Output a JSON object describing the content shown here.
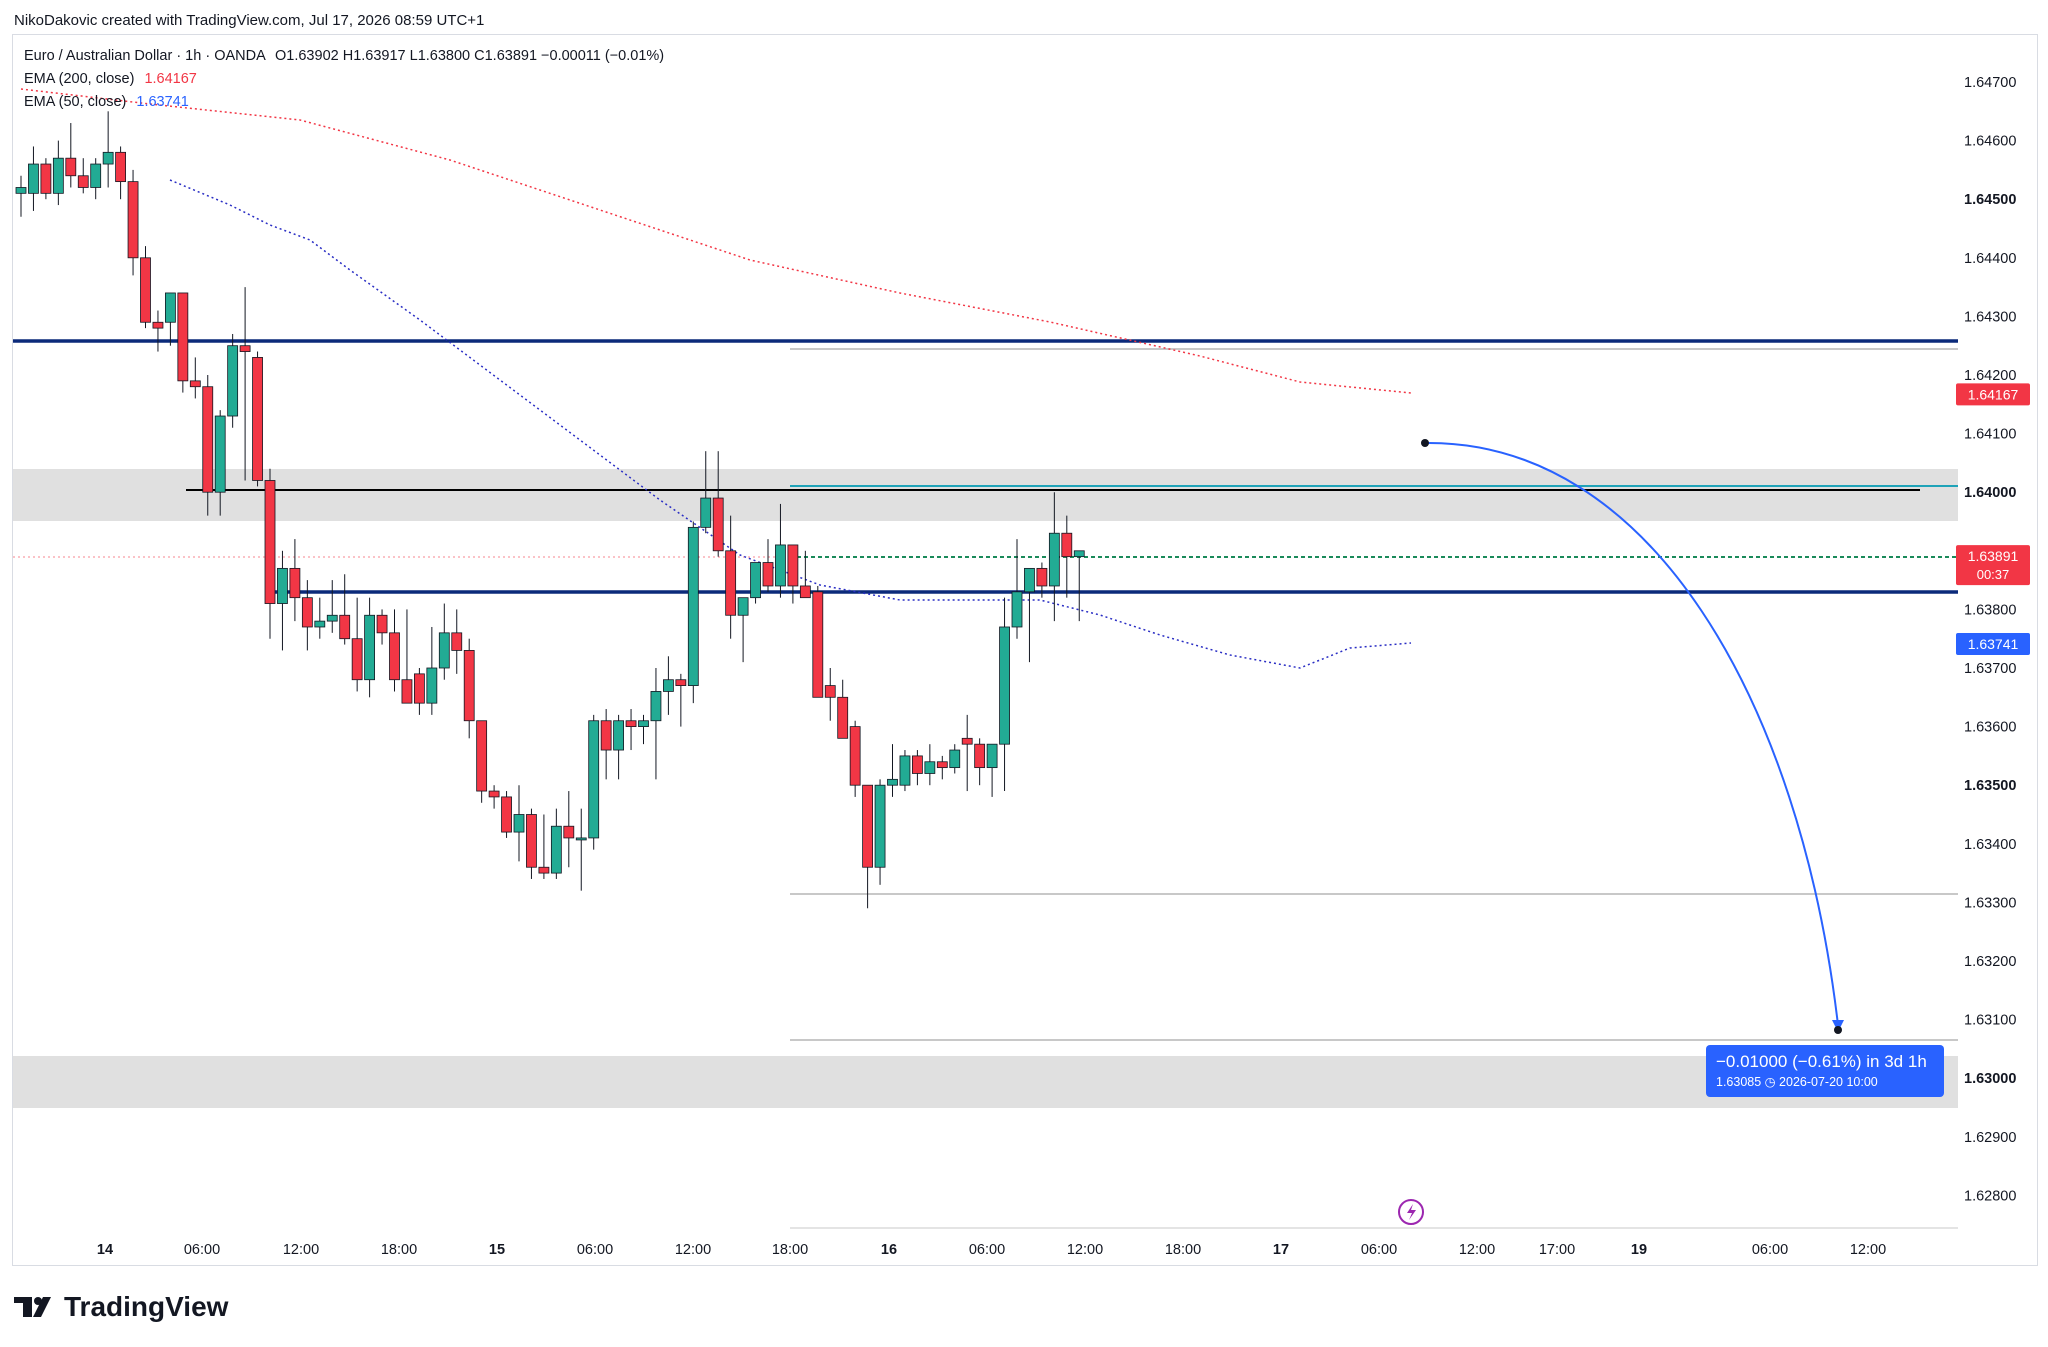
{
  "header": {
    "creator_text": "NikoDakovic created with TradingView.com, Jul 17, 2026 08:59 UTC+1"
  },
  "legend": {
    "symbol": "Euro / Australian Dollar · 1h · OANDA",
    "ohlc": "O1.63902 H1.63917 L1.63800 C1.63891 −0.00011 (−0.01%)",
    "ema200_label": "EMA (200, close)",
    "ema200_value": "1.64167",
    "ema50_label": "EMA (50, close)",
    "ema50_value": "1.63741"
  },
  "footer": {
    "brand": "TradingView"
  },
  "colors": {
    "up": "#22ab94",
    "down": "#f23645",
    "ema200": "#f23645",
    "ema50": "#2a2ec4",
    "navy": "#0b2a7a",
    "teal_line": "#1fa3b8",
    "green_dash": "#1a8a5a",
    "blue_arrow": "#2962ff"
  },
  "chart_data": {
    "type": "candlestick",
    "instrument": "Euro / Australian Dollar",
    "timeframe": "1h",
    "x_tick_labels": [
      "14",
      "06:00",
      "12:00",
      "18:00",
      "15",
      "06:00",
      "12:00",
      "18:00",
      "16",
      "06:00",
      "12:00",
      "18:00",
      "17",
      "06:00",
      "12:00",
      "17:00",
      "19",
      "06:00",
      "12:00"
    ],
    "y_tick_labels": [
      "1.64700",
      "1.64600",
      "1.64500",
      "1.64400",
      "1.64300",
      "1.64200",
      "1.64100",
      "1.64000",
      "1.63900",
      "1.63800",
      "1.63700",
      "1.63600",
      "1.63500",
      "1.63400",
      "1.63300",
      "1.63200",
      "1.63100",
      "1.63000",
      "1.62900",
      "1.62800"
    ],
    "ylim": [
      1.6272,
      1.648
    ],
    "price_tags": [
      {
        "text": "1.64167",
        "price": 1.64167,
        "color": "#f23645"
      },
      {
        "text": "1.63891",
        "sub": "00:37",
        "price": 1.63891,
        "color": "#f23645"
      },
      {
        "text": "1.63741",
        "price": 1.63741,
        "color": "#2962ff"
      }
    ],
    "candles": [
      [
        1.6451,
        1.6454,
        1.6447,
        1.6452
      ],
      [
        1.6451,
        1.6459,
        1.6448,
        1.6456
      ],
      [
        1.6456,
        1.6457,
        1.645,
        1.6451
      ],
      [
        1.6451,
        1.646,
        1.6449,
        1.6457
      ],
      [
        1.6457,
        1.6463,
        1.6452,
        1.6454
      ],
      [
        1.6454,
        1.6457,
        1.6451,
        1.6452
      ],
      [
        1.6452,
        1.6457,
        1.645,
        1.6456
      ],
      [
        1.6456,
        1.6465,
        1.6452,
        1.6458
      ],
      [
        1.6458,
        1.6459,
        1.645,
        1.6453
      ],
      [
        1.6453,
        1.6455,
        1.6437,
        1.644
      ],
      [
        1.644,
        1.6442,
        1.6428,
        1.6429
      ],
      [
        1.6429,
        1.6431,
        1.6424,
        1.6428
      ],
      [
        1.6429,
        1.6434,
        1.6425,
        1.6434
      ],
      [
        1.6434,
        1.6434,
        1.6417,
        1.6419
      ],
      [
        1.6419,
        1.6423,
        1.6416,
        1.6418
      ],
      [
        1.6418,
        1.642,
        1.6396,
        1.64
      ],
      [
        1.64,
        1.6414,
        1.6396,
        1.6413
      ],
      [
        1.6413,
        1.6427,
        1.6411,
        1.6425
      ],
      [
        1.6425,
        1.6435,
        1.6402,
        1.6424
      ],
      [
        1.6423,
        1.6424,
        1.6401,
        1.6402
      ],
      [
        1.6402,
        1.6404,
        1.6375,
        1.6381
      ],
      [
        1.6381,
        1.639,
        1.6373,
        1.6387
      ],
      [
        1.6387,
        1.6392,
        1.6378,
        1.6382
      ],
      [
        1.6382,
        1.6385,
        1.6373,
        1.6377
      ],
      [
        1.6377,
        1.6382,
        1.6375,
        1.6378
      ],
      [
        1.6378,
        1.6385,
        1.6376,
        1.6379
      ],
      [
        1.6379,
        1.6386,
        1.6374,
        1.6375
      ],
      [
        1.6375,
        1.6382,
        1.6366,
        1.6368
      ],
      [
        1.6368,
        1.6382,
        1.6365,
        1.6379
      ],
      [
        1.6379,
        1.638,
        1.6374,
        1.6376
      ],
      [
        1.6376,
        1.638,
        1.6366,
        1.6368
      ],
      [
        1.6368,
        1.638,
        1.6365,
        1.6364
      ],
      [
        1.6369,
        1.637,
        1.6362,
        1.6364
      ],
      [
        1.6364,
        1.6377,
        1.6362,
        1.637
      ],
      [
        1.637,
        1.6381,
        1.6368,
        1.6376
      ],
      [
        1.6376,
        1.638,
        1.6369,
        1.6373
      ],
      [
        1.6373,
        1.6375,
        1.6358,
        1.6361
      ],
      [
        1.6361,
        1.6361,
        1.6347,
        1.6349
      ],
      [
        1.6349,
        1.635,
        1.6346,
        1.6348
      ],
      [
        1.6348,
        1.6349,
        1.6341,
        1.6342
      ],
      [
        1.6342,
        1.635,
        1.6337,
        1.6345
      ],
      [
        1.6345,
        1.6346,
        1.6334,
        1.6336
      ],
      [
        1.6336,
        1.6345,
        1.6334,
        1.6335
      ],
      [
        1.6335,
        1.6346,
        1.6334,
        1.6343
      ],
      [
        1.6343,
        1.6349,
        1.6336,
        1.6341
      ],
      [
        1.6341,
        1.6346,
        1.6332,
        1.6341
      ],
      [
        1.6341,
        1.6362,
        1.6339,
        1.6361
      ],
      [
        1.6361,
        1.6363,
        1.6351,
        1.6356
      ],
      [
        1.6356,
        1.6362,
        1.6351,
        1.6361
      ],
      [
        1.6361,
        1.6363,
        1.6356,
        1.636
      ],
      [
        1.636,
        1.6362,
        1.6357,
        1.6361
      ],
      [
        1.6361,
        1.637,
        1.6351,
        1.6366
      ],
      [
        1.6366,
        1.6372,
        1.6362,
        1.6368
      ],
      [
        1.6368,
        1.6369,
        1.636,
        1.6367
      ],
      [
        1.6367,
        1.6395,
        1.6364,
        1.6394
      ],
      [
        1.6394,
        1.6407,
        1.6393,
        1.6399
      ],
      [
        1.6399,
        1.6407,
        1.6389,
        1.639
      ],
      [
        1.639,
        1.6396,
        1.6375,
        1.6379
      ],
      [
        1.6379,
        1.6382,
        1.6371,
        1.6382
      ],
      [
        1.6382,
        1.6388,
        1.6381,
        1.6388
      ],
      [
        1.6388,
        1.6392,
        1.6383,
        1.6384
      ],
      [
        1.6384,
        1.6398,
        1.6382,
        1.6391
      ],
      [
        1.6391,
        1.6391,
        1.6381,
        1.6384
      ],
      [
        1.6384,
        1.639,
        1.6383,
        1.6382
      ],
      [
        1.6383,
        1.6384,
        1.6366,
        1.6365
      ],
      [
        1.6367,
        1.637,
        1.6361,
        1.6365
      ],
      [
        1.6365,
        1.6368,
        1.6359,
        1.6358
      ],
      [
        1.636,
        1.6361,
        1.6348,
        1.635
      ],
      [
        1.635,
        1.635,
        1.6329,
        1.6336
      ],
      [
        1.6336,
        1.6351,
        1.6333,
        1.635
      ],
      [
        1.635,
        1.6357,
        1.6348,
        1.6351
      ],
      [
        1.635,
        1.6356,
        1.6349,
        1.6355
      ],
      [
        1.6355,
        1.6356,
        1.635,
        1.6352
      ],
      [
        1.6352,
        1.6357,
        1.635,
        1.6354
      ],
      [
        1.6354,
        1.6355,
        1.6351,
        1.6353
      ],
      [
        1.6353,
        1.6357,
        1.6352,
        1.6356
      ],
      [
        1.6358,
        1.6362,
        1.6349,
        1.6357
      ],
      [
        1.6357,
        1.6358,
        1.635,
        1.6353
      ],
      [
        1.6353,
        1.6356,
        1.6348,
        1.6357
      ],
      [
        1.6357,
        1.6382,
        1.6349,
        1.6377
      ],
      [
        1.6377,
        1.6392,
        1.6375,
        1.6383
      ],
      [
        1.6383,
        1.6386,
        1.6371,
        1.6387
      ],
      [
        1.6387,
        1.6388,
        1.6382,
        1.6384
      ],
      [
        1.6384,
        1.64,
        1.6378,
        1.6393
      ],
      [
        1.6393,
        1.6396,
        1.6382,
        1.6389
      ],
      [
        1.6389,
        1.639,
        1.6378,
        1.639
      ]
    ]
  }
}
